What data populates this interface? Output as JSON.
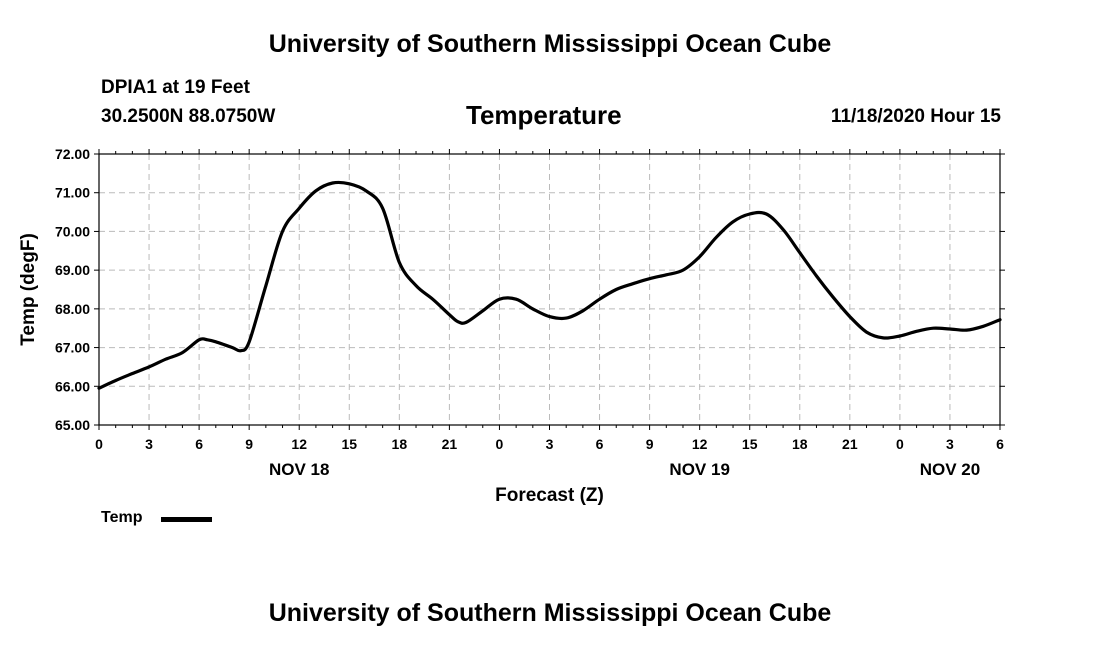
{
  "header": {
    "title": "University of Southern Mississippi Ocean Cube",
    "station": "DPIA1 at 19 Feet",
    "coords": "30.2500N 88.0750W",
    "datetime": "11/18/2020 Hour 15"
  },
  "footer": {
    "title": "University of Southern Mississippi Ocean Cube"
  },
  "chart_data": {
    "type": "line",
    "title": "Temperature",
    "xlabel": "Forecast (Z)",
    "ylabel": "Temp (degF)",
    "ylim": [
      65,
      72
    ],
    "xlim": [
      0,
      54
    ],
    "grid": true,
    "x_unit": "hours since NOV 18 00Z",
    "yticks": [
      "65.00",
      "66.00",
      "67.00",
      "68.00",
      "69.00",
      "70.00",
      "71.00",
      "72.00"
    ],
    "xtick_labels": [
      "0",
      "3",
      "6",
      "9",
      "12",
      "15",
      "18",
      "21",
      "0",
      "3",
      "6",
      "9",
      "12",
      "15",
      "18",
      "21",
      "0",
      "3",
      "6"
    ],
    "day_labels": [
      {
        "label": "NOV 18",
        "hour": 12
      },
      {
        "label": "NOV 19",
        "hour": 36
      },
      {
        "label": "NOV 20",
        "hour": 51
      }
    ],
    "legend": {
      "position": "bottom-left",
      "entries": [
        "Temp"
      ]
    },
    "series": [
      {
        "name": "Temp",
        "color": "#000000",
        "x": [
          0,
          1,
          2,
          3,
          4,
          5,
          6,
          6.5,
          7,
          8,
          8.5,
          9,
          10,
          11,
          12,
          13,
          14,
          15,
          16,
          17,
          18,
          19,
          20,
          21,
          21.5,
          22,
          23,
          24,
          25,
          26,
          27,
          28,
          29,
          30,
          31,
          32,
          33,
          34,
          35,
          36,
          37,
          38,
          39,
          40,
          41,
          42,
          43,
          44,
          45,
          46,
          47,
          48,
          49,
          50,
          51,
          52,
          53,
          54
        ],
        "values": [
          65.95,
          66.15,
          66.33,
          66.5,
          66.7,
          66.87,
          67.2,
          67.2,
          67.15,
          67.0,
          66.92,
          67.15,
          68.6,
          70.0,
          70.6,
          71.05,
          71.25,
          71.23,
          71.05,
          70.6,
          69.2,
          68.6,
          68.25,
          67.85,
          67.67,
          67.65,
          67.95,
          68.25,
          68.25,
          68.0,
          67.8,
          67.76,
          67.95,
          68.25,
          68.5,
          68.65,
          68.78,
          68.88,
          69.0,
          69.35,
          69.85,
          70.25,
          70.45,
          70.45,
          70.05,
          69.45,
          68.85,
          68.3,
          67.8,
          67.4,
          67.25,
          67.3,
          67.42,
          67.5,
          67.48,
          67.45,
          67.55,
          67.72
        ]
      }
    ]
  }
}
